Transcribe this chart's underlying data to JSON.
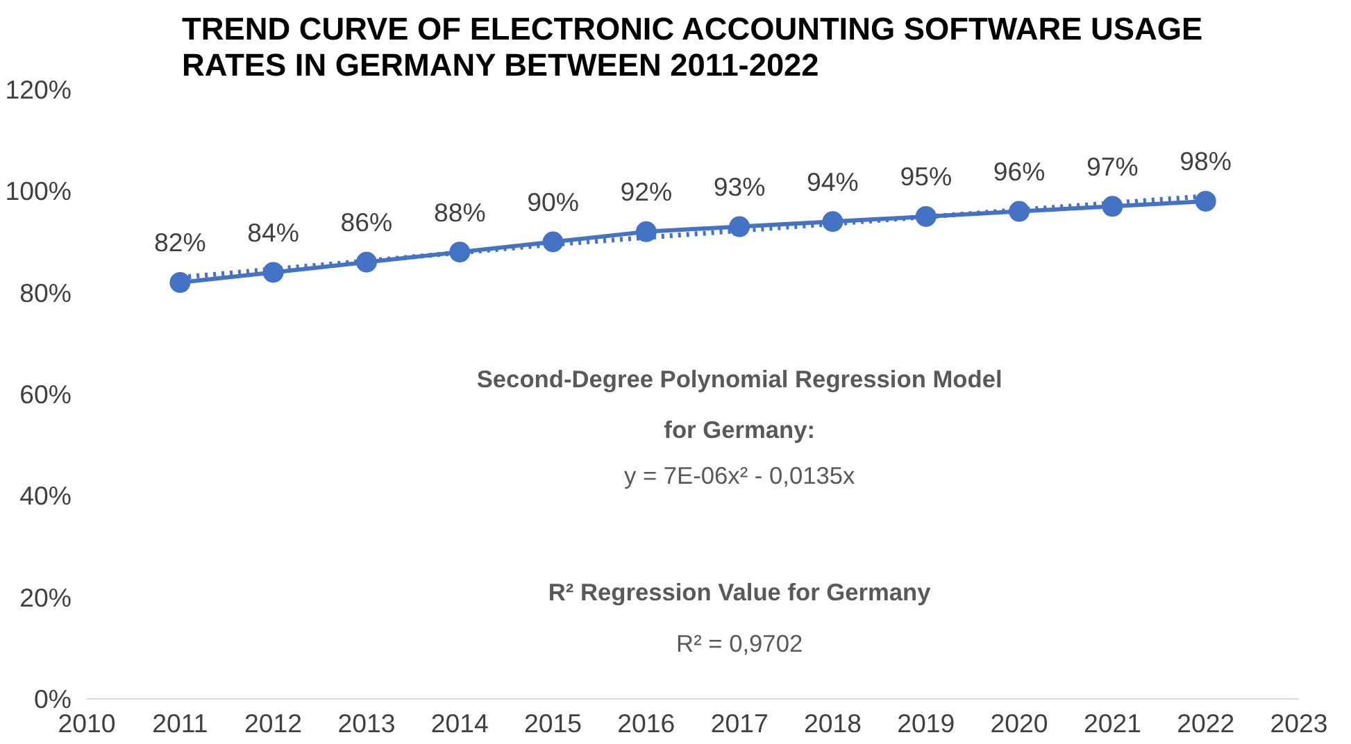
{
  "chart_data": {
    "type": "line",
    "title": "TREND CURVE OF ELECTRONIC ACCOUNTING SOFTWARE USAGE RATES IN GERMANY BETWEEN 2011-2022",
    "x": [
      2011,
      2012,
      2013,
      2014,
      2015,
      2016,
      2017,
      2018,
      2019,
      2020,
      2021,
      2022
    ],
    "series": [
      {
        "color": "#4472c4",
        "values": [
          82,
          84,
          86,
          88,
          90,
          92,
          93,
          94,
          95,
          96,
          97,
          98
        ],
        "value_labels": [
          "82%",
          "84%",
          "86%",
          "88%",
          "90%",
          "92%",
          "93%",
          "94%",
          "95%",
          "96%",
          "97%",
          "98%"
        ],
        "marker": "circle",
        "line_style": "solid"
      },
      {
        "type": "line",
        "color": "#4472c4",
        "x": [
          2011,
          2015,
          2022
        ],
        "values": [
          83,
          89.5,
          99
        ],
        "marker": "none",
        "line_style": "dotted"
      }
    ],
    "xlim": [
      2010,
      2023
    ],
    "xticks": [
      2010,
      2011,
      2012,
      2013,
      2014,
      2015,
      2016,
      2017,
      2018,
      2019,
      2020,
      2021,
      2022,
      2023
    ],
    "ylim": [
      0,
      120
    ],
    "yticks": [
      {
        "value": 0,
        "label": "0%"
      },
      {
        "value": 20,
        "label": "20%"
      },
      {
        "value": 40,
        "label": "40%"
      },
      {
        "value": 60,
        "label": "60%"
      },
      {
        "value": 80,
        "label": "80%"
      },
      {
        "value": 100,
        "label": "100%"
      },
      {
        "value": 120,
        "label": "120%"
      }
    ],
    "annotations": [
      "Second-Degree Polynomial Regression Model",
      "for Germany:",
      "y = 7E-06x² - 0,0135x",
      "R² Regression Value for Germany",
      "R² = 0,9702"
    ],
    "grid": false
  }
}
